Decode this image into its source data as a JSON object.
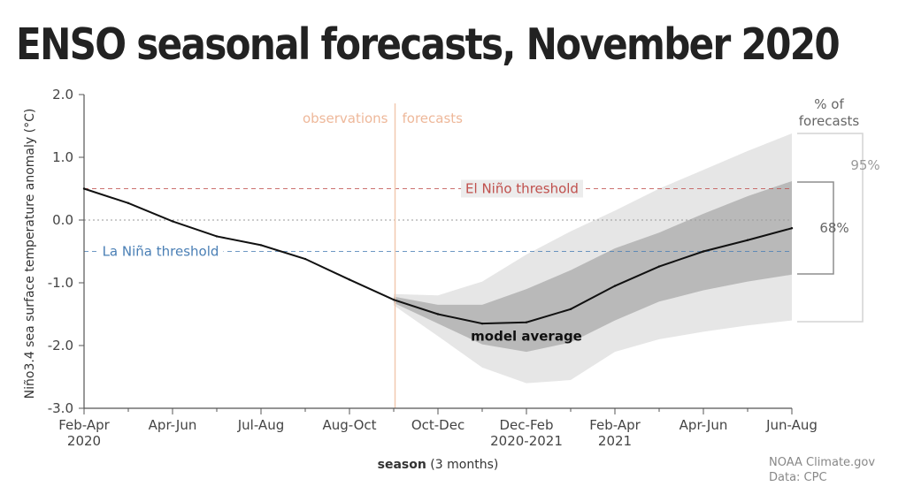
{
  "chart_data": {
    "type": "line",
    "title": "ENSO seasonal forecasts, November 2020",
    "ylabel": "Niño3.4 sea surface temperature anomaly (°C)",
    "xlabel_bold": "season",
    "xlabel_rest": " (3 months)",
    "ylim": [
      -3.0,
      2.0
    ],
    "yticks": [
      "2.0",
      "1.0",
      "0.0",
      "-1.0",
      "-2.0",
      "-3.0"
    ],
    "ytick_values": [
      2.0,
      1.0,
      0.0,
      -1.0,
      -2.0,
      -3.0
    ],
    "xticks": [
      {
        "label": "Feb-Apr",
        "sub": "2020",
        "index": 0
      },
      {
        "label": "Apr-Jun",
        "sub": "",
        "index": 2
      },
      {
        "label": "Jul-Aug",
        "sub": "",
        "index": 4
      },
      {
        "label": "Aug-Oct",
        "sub": "",
        "index": 6
      },
      {
        "label": "Oct-Dec",
        "sub": "",
        "index": 8
      },
      {
        "label": "Dec-Feb",
        "sub": "2020-2021",
        "index": 10
      },
      {
        "label": "Feb-Apr",
        "sub": "2021",
        "index": 12
      },
      {
        "label": "Apr-Jun",
        "sub": "",
        "index": 14
      },
      {
        "label": "Jun-Aug",
        "sub": "",
        "index": 16
      }
    ],
    "x_index_max": 16,
    "observation_end_index": 7,
    "observations_label": "observations",
    "forecasts_label": "forecasts",
    "el_nino_threshold": 0.5,
    "el_nino_label": "El Niño threshold",
    "la_nina_threshold": -0.5,
    "la_nina_label": "La Niña threshold",
    "model_average_label": "model average",
    "series": [
      {
        "name": "model average",
        "x": [
          0,
          1,
          2,
          3,
          4,
          5,
          6,
          7,
          8,
          9,
          10,
          11,
          12,
          13,
          14,
          15,
          16
        ],
        "values": [
          0.5,
          0.27,
          -0.02,
          -0.26,
          -0.4,
          -0.62,
          -0.95,
          -1.27,
          -1.5,
          -1.65,
          -1.63,
          -1.42,
          -1.05,
          -0.74,
          -0.5,
          -0.32,
          -0.13
        ]
      }
    ],
    "band_68": {
      "x": [
        7,
        8,
        9,
        10,
        11,
        12,
        13,
        14,
        15,
        16
      ],
      "upper": [
        -1.22,
        -1.35,
        -1.35,
        -1.1,
        -0.8,
        -0.45,
        -0.2,
        0.1,
        0.38,
        0.62
      ],
      "lower": [
        -1.32,
        -1.65,
        -1.98,
        -2.1,
        -1.95,
        -1.6,
        -1.3,
        -1.12,
        -0.98,
        -0.87
      ]
    },
    "band_95": {
      "x": [
        7,
        8,
        9,
        10,
        11,
        12,
        13,
        14,
        15,
        16
      ],
      "upper": [
        -1.18,
        -1.2,
        -0.98,
        -0.55,
        -0.18,
        0.15,
        0.5,
        0.8,
        1.1,
        1.38
      ],
      "lower": [
        -1.36,
        -1.85,
        -2.35,
        -2.6,
        -2.55,
        -2.1,
        -1.9,
        -1.78,
        -1.68,
        -1.6
      ]
    },
    "legend_title": "% of forecasts",
    "legend_title_line1": "% of",
    "legend_title_line2": "forecasts",
    "legend_95": "95%",
    "legend_68": "68%",
    "credit_line1": "NOAA Climate.gov",
    "credit_line2": "Data: CPC",
    "colors": {
      "line": "#111111",
      "band_95": "#e6e6e6",
      "band_68": "#b9b9b9",
      "el_nino": "#c0504d",
      "la_nina": "#4a7fb5",
      "divider": "#f2c9b0",
      "obs_label": "#eeb89a",
      "axis": "#555555"
    }
  }
}
